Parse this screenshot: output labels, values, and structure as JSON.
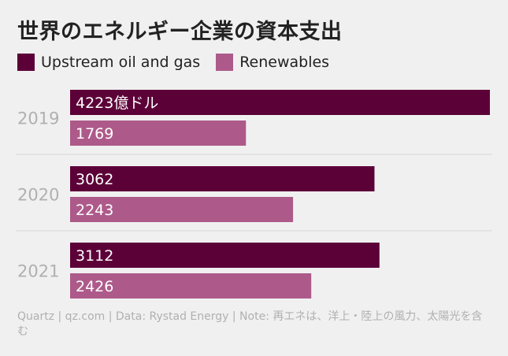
{
  "title": "世界のエネルギー企業の資本支出",
  "source": "Quartz | qz.com | Data: Rystad Energy | Note: 再エネは、洋上・陸上の風力、太陽光を含む",
  "colors": {
    "upstream": "#5c0038",
    "renewables": "#ad5a8a",
    "grid": "#d6d6d6",
    "year_label": "#b0b0b0"
  },
  "chart_data": {
    "type": "bar",
    "orientation": "horizontal",
    "categories": [
      "2019",
      "2020",
      "2021"
    ],
    "series": [
      {
        "name": "Upstream oil and gas",
        "values": [
          4223,
          3062,
          3112
        ],
        "labels": [
          "4223億ドル",
          "3062",
          "3112"
        ]
      },
      {
        "name": "Renewables",
        "values": [
          1769,
          2243,
          2426
        ],
        "labels": [
          "1769",
          "2243",
          "2426"
        ]
      }
    ],
    "xlim": [
      0,
      4223
    ],
    "legend": "top-left",
    "grid": false
  }
}
